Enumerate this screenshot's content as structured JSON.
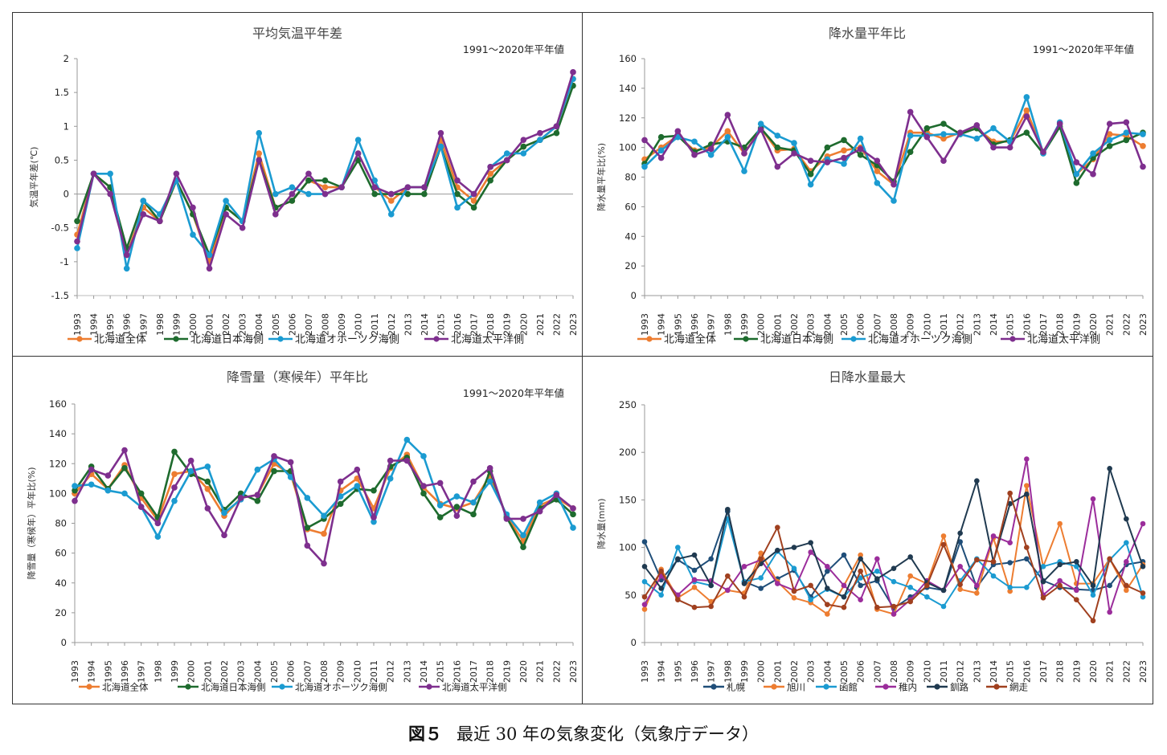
{
  "figure_caption": {
    "label": "図５",
    "text": "最近 30 年の気象変化（気象庁データ）"
  },
  "chart_data": [
    {
      "type": "line",
      "title": "平均気温平年差",
      "note": "1991～2020年平年値",
      "ylabel": "気温平年差(℃)",
      "ylim": [
        -1.5,
        2
      ],
      "yticks": [
        -1.5,
        -1,
        -0.5,
        0,
        0.5,
        1,
        1.5,
        2
      ],
      "ytick_labels": [
        "-1.5",
        "-1",
        "-0.5",
        "0",
        "0.5",
        "1",
        "1.5",
        "2"
      ],
      "x": [
        "1993",
        "1994",
        "1995",
        "1996",
        "1997",
        "1998",
        "1999",
        "2000",
        "2001",
        "2002",
        "2003",
        "2004",
        "2005",
        "2006",
        "2007",
        "2008",
        "2009",
        "2010",
        "2011",
        "2012",
        "2013",
        "2014",
        "2015",
        "2016",
        "2017",
        "2018",
        "2019",
        "2020",
        "2021",
        "2022",
        "2023"
      ],
      "series": [
        {
          "name": "北海道全体",
          "color": "#ED7D31",
          "values": [
            -0.6,
            0.3,
            0.1,
            -0.9,
            -0.2,
            -0.4,
            0.2,
            -0.3,
            -1.0,
            -0.2,
            -0.4,
            0.6,
            -0.2,
            -0.1,
            0.2,
            0.1,
            0.1,
            0.6,
            0.1,
            -0.1,
            0.1,
            0.1,
            0.8,
            0.1,
            -0.1,
            0.3,
            0.5,
            0.7,
            0.8,
            1.0,
            1.7
          ]
        },
        {
          "name": "北海道日本海側",
          "color": "#1E6B2E",
          "values": [
            -0.4,
            0.3,
            0.1,
            -0.8,
            -0.1,
            -0.4,
            0.2,
            -0.3,
            -0.9,
            -0.2,
            -0.4,
            0.5,
            -0.2,
            -0.1,
            0.2,
            0.2,
            0.1,
            0.5,
            0.0,
            0.0,
            0.0,
            0.0,
            0.7,
            0.0,
            -0.2,
            0.2,
            0.5,
            0.7,
            0.8,
            0.9,
            1.6
          ]
        },
        {
          "name": "北海道オホーツク海側",
          "color": "#1B9BD1",
          "values": [
            -0.8,
            0.3,
            0.3,
            -1.1,
            -0.1,
            -0.3,
            0.2,
            -0.6,
            -0.9,
            -0.1,
            -0.4,
            0.9,
            0.0,
            0.1,
            0.0,
            0.0,
            0.1,
            0.8,
            0.2,
            -0.3,
            0.1,
            0.1,
            0.7,
            -0.2,
            0.0,
            0.4,
            0.6,
            0.6,
            0.8,
            1.0,
            1.7
          ]
        },
        {
          "name": "北海道太平洋側",
          "color": "#7E2F8E",
          "values": [
            -0.7,
            0.3,
            0.0,
            -0.9,
            -0.3,
            -0.4,
            0.3,
            -0.2,
            -1.1,
            -0.3,
            -0.5,
            0.5,
            -0.3,
            0.0,
            0.3,
            0.0,
            0.1,
            0.6,
            0.1,
            0.0,
            0.1,
            0.1,
            0.9,
            0.2,
            0.0,
            0.4,
            0.5,
            0.8,
            0.9,
            1.0,
            1.8
          ]
        }
      ]
    },
    {
      "type": "line",
      "title": "降水量平年比",
      "note": "1991～2020年平年値",
      "ylabel": "降水量平年比(%)",
      "ylim": [
        0,
        160
      ],
      "yticks": [
        0,
        20,
        40,
        60,
        80,
        100,
        120,
        140,
        160
      ],
      "ytick_labels": [
        "0",
        "20",
        "40",
        "60",
        "80",
        "100",
        "120",
        "140",
        "160"
      ],
      "x": [
        "1993",
        "1994",
        "1995",
        "1996",
        "1997",
        "1998",
        "1999",
        "2000",
        "2001",
        "2002",
        "2003",
        "2004",
        "2005",
        "2006",
        "2007",
        "2008",
        "2009",
        "2010",
        "2011",
        "2012",
        "2013",
        "2014",
        "2015",
        "2016",
        "2017",
        "2018",
        "2019",
        "2020",
        "2021",
        "2022",
        "2023"
      ],
      "series": [
        {
          "name": "北海道全体",
          "color": "#ED7D31",
          "values": [
            92,
            100,
            108,
            98,
            100,
            111,
            96,
            113,
            98,
            99,
            84,
            94,
            98,
            100,
            84,
            75,
            110,
            110,
            106,
            110,
            113,
            104,
            104,
            125,
            97,
            116,
            82,
            92,
            109,
            108,
            101
          ]
        },
        {
          "name": "北海道日本海側",
          "color": "#1E6B2E",
          "values": [
            89,
            107,
            108,
            97,
            102,
            104,
            100,
            113,
            100,
            98,
            82,
            100,
            105,
            95,
            88,
            77,
            97,
            113,
            116,
            109,
            113,
            102,
            105,
            110,
            96,
            114,
            76,
            93,
            101,
            105,
            110
          ]
        },
        {
          "name": "北海道オホーツク海側",
          "color": "#1B9BD1",
          "values": [
            87,
            98,
            107,
            104,
            95,
            107,
            84,
            116,
            108,
            103,
            75,
            92,
            89,
            106,
            76,
            64,
            108,
            108,
            109,
            109,
            106,
            113,
            104,
            134,
            96,
            117,
            82,
            96,
            105,
            110,
            109
          ]
        },
        {
          "name": "北海道太平洋側",
          "color": "#7E2F8E",
          "values": [
            105,
            93,
            111,
            95,
            99,
            122,
            96,
            112,
            87,
            96,
            91,
            90,
            93,
            99,
            91,
            75,
            124,
            107,
            91,
            110,
            115,
            100,
            100,
            121,
            97,
            116,
            90,
            82,
            116,
            117,
            87
          ]
        }
      ]
    },
    {
      "type": "line",
      "title": "降雪量（寒候年）平年比",
      "note": "1991～2020年平年値",
      "ylabel": "降雪量（寒候年）平年比(%)",
      "ylim": [
        0,
        160
      ],
      "yticks": [
        0,
        20,
        40,
        60,
        80,
        100,
        120,
        140,
        160
      ],
      "ytick_labels": [
        "0",
        "20",
        "40",
        "60",
        "80",
        "100",
        "120",
        "140",
        "160"
      ],
      "x": [
        "1993",
        "1994",
        "1995",
        "1996",
        "1997",
        "1998",
        "1999",
        "2000",
        "2001",
        "2002",
        "2003",
        "2004",
        "2005",
        "2006",
        "2007",
        "2008",
        "2009",
        "2010",
        "2011",
        "2012",
        "2013",
        "2014",
        "2015",
        "2016",
        "2017",
        "2018",
        "2019",
        "2020",
        "2021",
        "2022",
        "2023"
      ],
      "series": [
        {
          "name": "北海道全体",
          "color": "#ED7D31",
          "values": [
            100,
            113,
            103,
            119,
            97,
            82,
            113,
            115,
            103,
            85,
            97,
            99,
            120,
            113,
            76,
            73,
            102,
            110,
            90,
            117,
            126,
            104,
            93,
            90,
            94,
            112,
            85,
            68,
            92,
            97,
            90
          ]
        },
        {
          "name": "北海道日本海側",
          "color": "#1E6B2E",
          "values": [
            102,
            118,
            103,
            117,
            100,
            84,
            128,
            113,
            108,
            89,
            100,
            95,
            115,
            115,
            77,
            83,
            93,
            103,
            102,
            118,
            124,
            100,
            84,
            91,
            86,
            115,
            84,
            64,
            90,
            96,
            86
          ]
        },
        {
          "name": "北海道オホーツク海側",
          "color": "#1B9BD1",
          "values": [
            105,
            106,
            102,
            100,
            91,
            71,
            95,
            115,
            118,
            87,
            96,
            116,
            123,
            111,
            97,
            85,
            98,
            105,
            81,
            110,
            136,
            125,
            92,
            98,
            94,
            108,
            86,
            72,
            94,
            100,
            77
          ]
        },
        {
          "name": "北海道太平洋側",
          "color": "#7E2F8E",
          "values": [
            95,
            116,
            112,
            129,
            91,
            80,
            104,
            122,
            90,
            72,
            97,
            99,
            125,
            121,
            65,
            53,
            108,
            116,
            84,
            122,
            122,
            105,
            107,
            85,
            108,
            117,
            83,
            83,
            88,
            99,
            90
          ]
        }
      ]
    },
    {
      "type": "line",
      "title": "日降水量最大",
      "note": "",
      "ylabel": "降水量(mm)",
      "ylim": [
        0,
        250
      ],
      "yticks": [
        0,
        50,
        100,
        150,
        200,
        250
      ],
      "ytick_labels": [
        "0",
        "50",
        "100",
        "150",
        "200",
        "250"
      ],
      "x": [
        "1993",
        "1994",
        "1995",
        "1996",
        "1997",
        "1998",
        "1999",
        "2000",
        "2001",
        "2002",
        "2003",
        "2004",
        "2005",
        "2006",
        "2007",
        "2008",
        "2009",
        "2010",
        "2011",
        "2012",
        "2013",
        "2014",
        "2015",
        "2016",
        "2017",
        "2018",
        "2019",
        "2020",
        "2021",
        "2022",
        "2023"
      ],
      "series": [
        {
          "name": "札幌",
          "color": "#1F4E79",
          "values": [
            106,
            66,
            87,
            76,
            88,
            138,
            64,
            57,
            67,
            76,
            48,
            75,
            92,
            60,
            65,
            36,
            48,
            58,
            55,
            106,
            58,
            82,
            84,
            88,
            65,
            58,
            56,
            55,
            60,
            82,
            85
          ]
        },
        {
          "name": "旭川",
          "color": "#ED7D31",
          "values": [
            35,
            77,
            47,
            58,
            43,
            55,
            52,
            94,
            64,
            47,
            42,
            30,
            60,
            92,
            35,
            30,
            70,
            62,
            112,
            56,
            52,
            110,
            54,
            165,
            80,
            125,
            62,
            62,
            88,
            55,
            82
          ]
        },
        {
          "name": "函館",
          "color": "#1B9BD1",
          "values": [
            64,
            50,
            100,
            64,
            60,
            130,
            64,
            68,
            96,
            78,
            45,
            56,
            48,
            68,
            75,
            64,
            58,
            48,
            38,
            65,
            88,
            70,
            58,
            58,
            80,
            85,
            80,
            50,
            87,
            105,
            48
          ]
        },
        {
          "name": "稚内",
          "color": "#9B2D9B",
          "values": [
            40,
            70,
            50,
            66,
            65,
            55,
            80,
            87,
            62,
            55,
            95,
            80,
            60,
            45,
            88,
            30,
            45,
            65,
            55,
            80,
            60,
            112,
            105,
            193,
            50,
            65,
            55,
            151,
            32,
            85,
            125
          ]
        },
        {
          "name": "釧路",
          "color": "#203A50",
          "values": [
            80,
            57,
            88,
            92,
            60,
            140,
            62,
            83,
            97,
            100,
            105,
            57,
            48,
            88,
            67,
            78,
            90,
            63,
            55,
            115,
            170,
            85,
            146,
            156,
            64,
            82,
            85,
            60,
            183,
            130,
            80
          ]
        },
        {
          "name": "網走",
          "color": "#A0401F",
          "values": [
            48,
            75,
            45,
            37,
            38,
            70,
            48,
            88,
            121,
            54,
            60,
            40,
            37,
            75,
            37,
            38,
            43,
            60,
            103,
            61,
            87,
            85,
            157,
            100,
            47,
            60,
            45,
            23,
            88,
            60,
            52
          ]
        }
      ]
    }
  ]
}
